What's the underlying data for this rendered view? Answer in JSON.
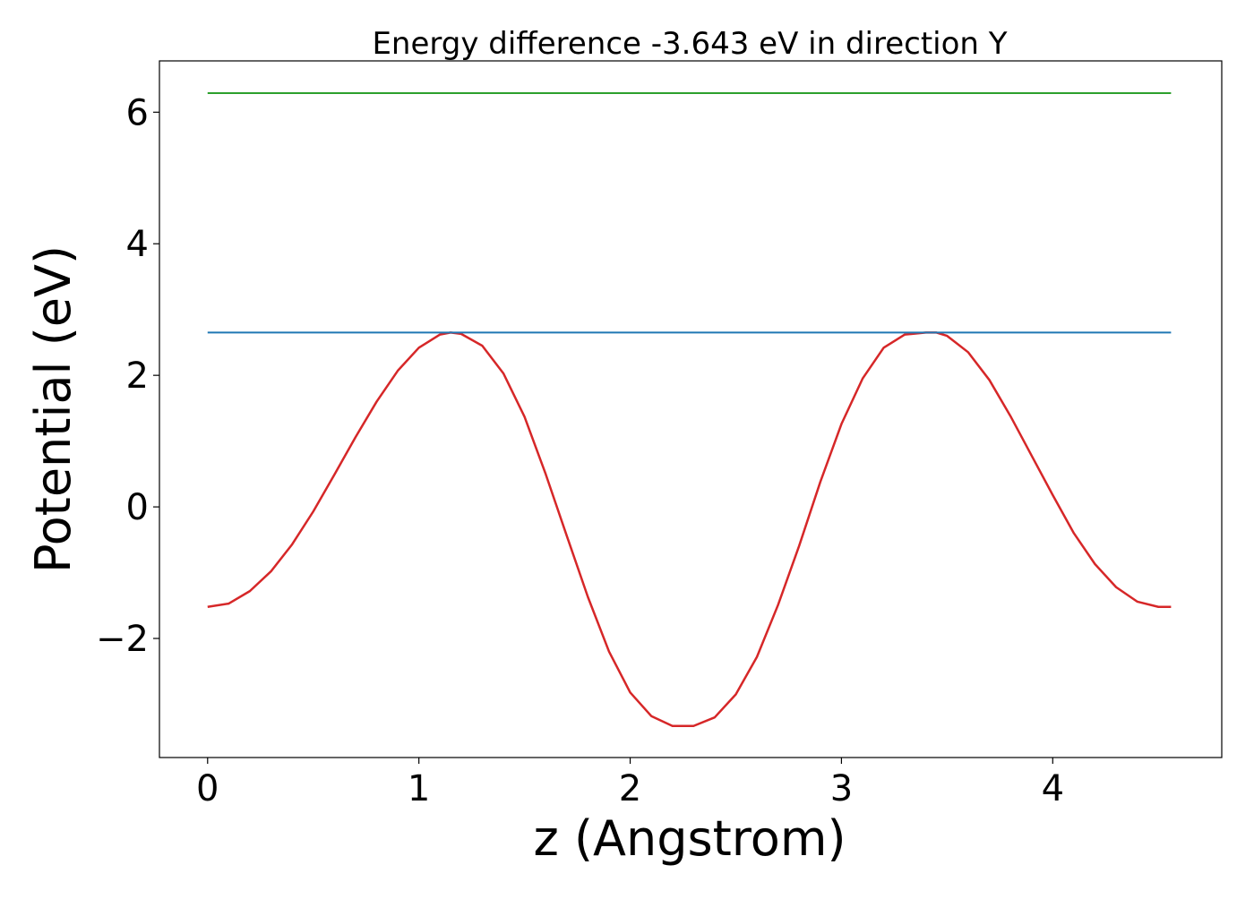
{
  "chart_data": {
    "type": "line",
    "title": "Energy difference -3.643 eV in direction Y",
    "xlabel": "z (Angstrom)",
    "ylabel": "Potential (eV)",
    "xlim": [
      -0.228,
      4.8
    ],
    "ylim": [
      -3.81,
      6.78
    ],
    "grid": false,
    "x_ticks": [
      {
        "value": 0,
        "label": "0"
      },
      {
        "value": 1,
        "label": "1"
      },
      {
        "value": 2,
        "label": "2"
      },
      {
        "value": 3,
        "label": "3"
      },
      {
        "value": 4,
        "label": "4"
      }
    ],
    "y_ticks": [
      {
        "value": -2,
        "label": "−2"
      },
      {
        "value": 0,
        "label": "0"
      },
      {
        "value": 2,
        "label": "2"
      },
      {
        "value": 4,
        "label": "4"
      },
      {
        "value": 6,
        "label": "6"
      }
    ],
    "series": [
      {
        "color": "#d62728",
        "kind": "curve",
        "x": [
          0,
          0.1,
          0.2,
          0.3,
          0.4,
          0.5,
          0.6,
          0.7,
          0.8,
          0.9,
          1.0,
          1.1,
          1.15,
          1.2,
          1.3,
          1.4,
          1.5,
          1.6,
          1.7,
          1.8,
          1.9,
          2.0,
          2.1,
          2.2,
          2.3,
          2.4,
          2.5,
          2.6,
          2.7,
          2.8,
          2.9,
          3.0,
          3.1,
          3.2,
          3.3,
          3.4,
          3.45,
          3.5,
          3.6,
          3.7,
          3.8,
          3.9,
          4.0,
          4.1,
          4.2,
          4.3,
          4.4,
          4.5,
          4.56
        ],
        "y": [
          -1.52,
          -1.47,
          -1.28,
          -0.98,
          -0.57,
          -0.07,
          0.49,
          1.06,
          1.6,
          2.07,
          2.42,
          2.62,
          2.65,
          2.63,
          2.45,
          2.03,
          1.37,
          0.5,
          -0.44,
          -1.37,
          -2.2,
          -2.82,
          -3.18,
          -3.33,
          -3.33,
          -3.2,
          -2.85,
          -2.28,
          -1.49,
          -0.59,
          0.38,
          1.26,
          1.95,
          2.42,
          2.62,
          2.65,
          2.65,
          2.6,
          2.35,
          1.93,
          1.38,
          0.78,
          0.18,
          -0.4,
          -0.87,
          -1.22,
          -1.44,
          -1.52,
          -1.52
        ]
      },
      {
        "color": "#1f77b4",
        "kind": "constant",
        "x": [
          0,
          4.56
        ],
        "y": [
          2.65,
          2.65
        ]
      },
      {
        "color": "#2ca02c",
        "kind": "constant",
        "x": [
          0,
          4.56
        ],
        "y": [
          6.29,
          6.29
        ]
      }
    ]
  }
}
